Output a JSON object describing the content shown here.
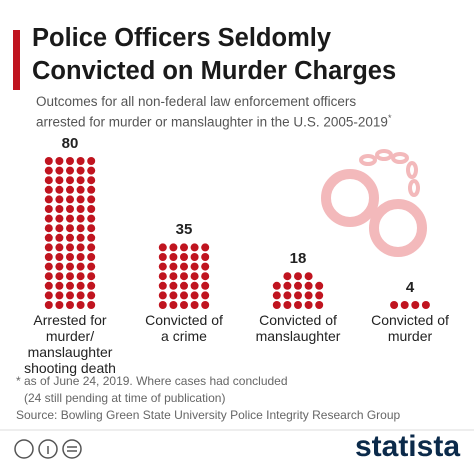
{
  "chart_data": {
    "type": "pictogram",
    "title": [
      "Police Officers Seldomly",
      "Convicted on Murder Charges"
    ],
    "subtitle": [
      "Outcomes for all non-federal law enforcement officers",
      "arrested for murder or manslaughter in the U.S. 2005-2019"
    ],
    "subtitle_mark": "*",
    "categories": [
      "Arrested for\nmurder/\nmanslaughter\nshooting death",
      "Convicted of\na crime",
      "Convicted of\nmanslaughter",
      "Convicted of\nmurder"
    ],
    "values": [
      80,
      35,
      18,
      4
    ],
    "color": "#c0141f",
    "notes": [
      "* as of June 24, 2019. Where cases had concluded",
      "(24 still pending at time of publication)",
      "Source: Bowling Green State University Police Integrity Research Group"
    ],
    "brand": "statista"
  }
}
